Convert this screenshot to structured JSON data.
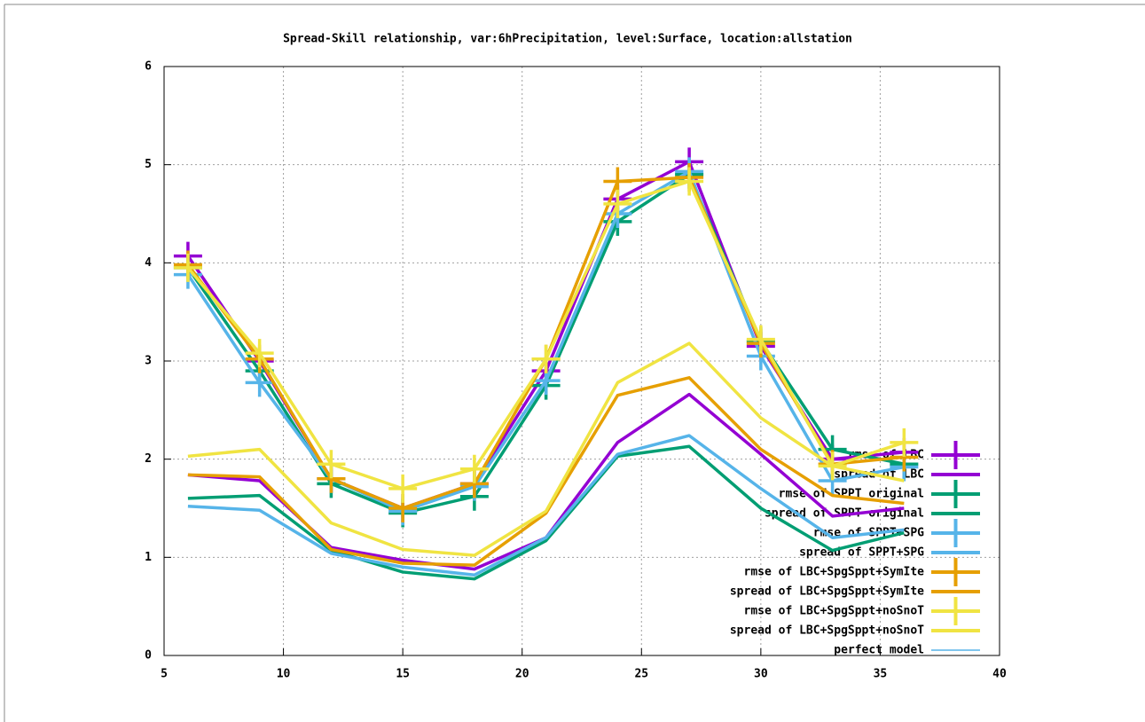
{
  "chart_data": {
    "type": "line",
    "title": "Spread-Skill relationship, var:6hPrecipitation, level:Surface, location:allstation",
    "x": [
      6,
      9,
      12,
      15,
      18,
      21,
      24,
      27,
      30,
      33,
      36
    ],
    "xlim": [
      5,
      40
    ],
    "xticks": [
      5,
      10,
      15,
      20,
      25,
      30,
      35,
      40
    ],
    "ylim": [
      0,
      6
    ],
    "yticks": [
      0,
      1,
      2,
      3,
      4,
      5,
      6
    ],
    "grid": true,
    "legend": "lower-right",
    "series": [
      {
        "name": "rmse of LBC",
        "color": "#9400d3",
        "style": "linespoints",
        "values": [
          4.07,
          3.0,
          1.8,
          1.5,
          1.75,
          2.9,
          4.65,
          5.03,
          3.15,
          2.0,
          2.07
        ]
      },
      {
        "name": "spread of LBC",
        "color": "#9400d3",
        "style": "lines",
        "values": [
          1.84,
          1.78,
          1.1,
          0.97,
          0.88,
          1.2,
          2.17,
          2.66,
          2.05,
          1.42,
          1.5
        ]
      },
      {
        "name": "rmse of SPPT original",
        "color": "#009e73",
        "style": "linespoints",
        "values": [
          3.95,
          2.9,
          1.75,
          1.45,
          1.62,
          2.75,
          4.42,
          4.9,
          3.2,
          2.1,
          1.95
        ]
      },
      {
        "name": "spread of SPPT original",
        "color": "#009e73",
        "style": "lines",
        "values": [
          1.6,
          1.63,
          1.07,
          0.85,
          0.78,
          1.17,
          2.03,
          2.13,
          1.5,
          1.07,
          1.25
        ]
      },
      {
        "name": "rmse of SPPT+SPG",
        "color": "#56b4e9",
        "style": "linespoints",
        "values": [
          3.88,
          2.78,
          1.8,
          1.47,
          1.72,
          2.8,
          4.5,
          4.93,
          3.05,
          1.78,
          1.92
        ]
      },
      {
        "name": "spread of SPPT+SPG",
        "color": "#56b4e9",
        "style": "lines",
        "values": [
          1.52,
          1.48,
          1.04,
          0.9,
          0.82,
          1.2,
          2.05,
          2.24,
          1.7,
          1.2,
          1.28
        ]
      },
      {
        "name": "rmse of LBC+SpgSppt+SymIte",
        "color": "#e69f00",
        "style": "linespoints",
        "values": [
          3.98,
          3.02,
          1.8,
          1.5,
          1.75,
          3.02,
          4.83,
          4.87,
          3.18,
          1.95,
          2.02
        ]
      },
      {
        "name": "spread of LBC+SpgSppt+SymIte",
        "color": "#e69f00",
        "style": "lines",
        "values": [
          1.84,
          1.82,
          1.08,
          0.94,
          0.92,
          1.45,
          2.65,
          2.83,
          2.1,
          1.63,
          1.55
        ]
      },
      {
        "name": "rmse of LBC+SpgSppt+noSnoT",
        "color": "#f0e442",
        "style": "linespoints",
        "values": [
          3.95,
          3.08,
          1.95,
          1.7,
          1.9,
          3.02,
          4.6,
          4.83,
          3.22,
          1.93,
          2.17
        ]
      },
      {
        "name": "spread of LBC+SpgSppt+noSnoT",
        "color": "#f0e442",
        "style": "lines",
        "values": [
          2.03,
          2.1,
          1.35,
          1.08,
          1.02,
          1.47,
          2.78,
          3.18,
          2.42,
          1.93,
          1.78
        ]
      },
      {
        "name": "perfect model",
        "color": "#56b4e9",
        "style": "thin",
        "values": [
          null,
          null,
          null,
          null,
          null,
          null,
          null,
          null,
          null,
          null,
          null
        ]
      }
    ]
  }
}
